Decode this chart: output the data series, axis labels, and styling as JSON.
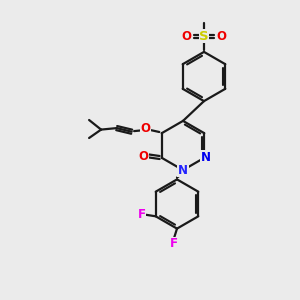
{
  "bg_color": "#EBEBEB",
  "bond_color": "#1a1a1a",
  "bond_width": 1.6,
  "atom_colors": {
    "N_sp2": "#0000EE",
    "N_amine": "#2222FF",
    "O_red": "#EE0000",
    "S_yellow": "#CCCC00",
    "F_magenta": "#EE00EE"
  },
  "font_size": 8.5,
  "fig_width": 3.0,
  "fig_height": 3.0,
  "xlim": [
    0,
    10
  ],
  "ylim": [
    0,
    10
  ]
}
